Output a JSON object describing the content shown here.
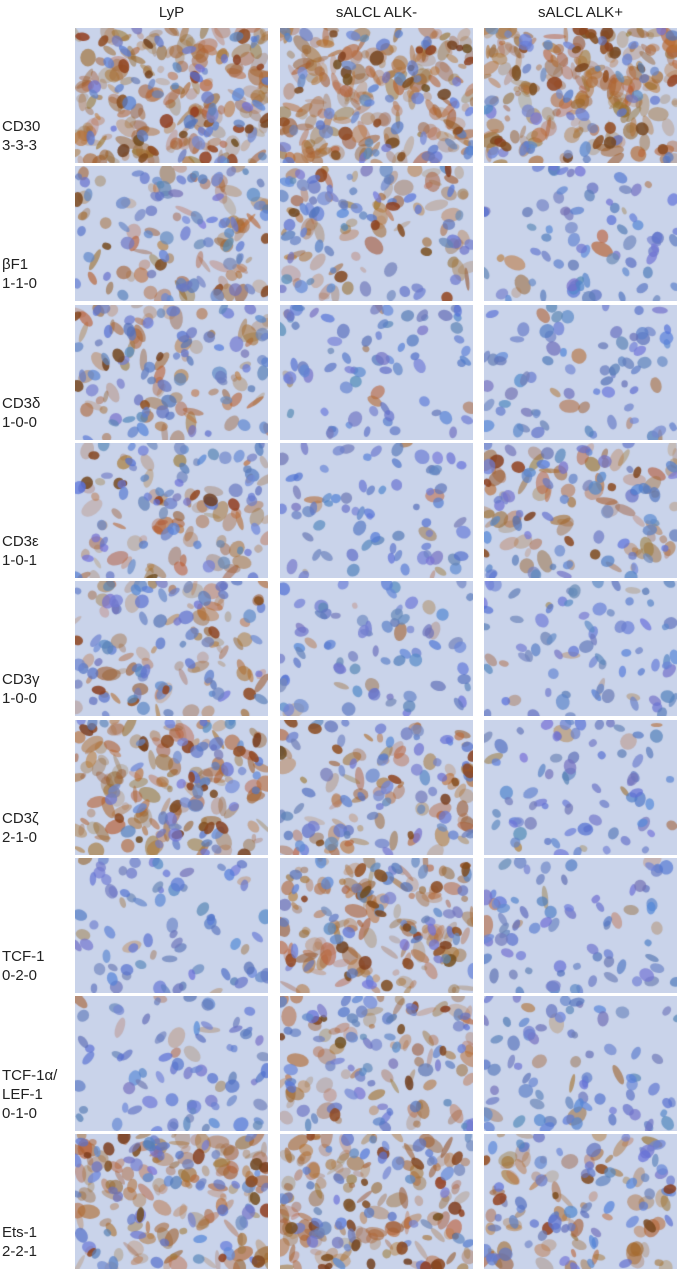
{
  "columns": [
    "LyP",
    "sALCL ALK-",
    "sALCL ALK+"
  ],
  "rows": [
    {
      "label": [
        "CD30",
        "3-3-3"
      ]
    },
    {
      "label": [
        "βF1",
        "1-1-0"
      ]
    },
    {
      "label": [
        "CD3δ",
        "1-0-0"
      ]
    },
    {
      "label": [
        "CD3ε",
        "1-0-1"
      ]
    },
    {
      "label": [
        "CD3γ",
        "1-0-0"
      ]
    },
    {
      "label": [
        "CD3ζ",
        "2-1-0"
      ]
    },
    {
      "label": [
        "TCF-1",
        "0-2-0"
      ]
    },
    {
      "label": [
        "TCF-1α/",
        "LEF-1",
        "0-1-0"
      ]
    },
    {
      "label": [
        "Ets-1",
        "2-2-1"
      ]
    }
  ],
  "colors": {
    "hematoxylin": "#6f86c4",
    "dab": "#9a5a22",
    "background": "#c9d3ea"
  }
}
